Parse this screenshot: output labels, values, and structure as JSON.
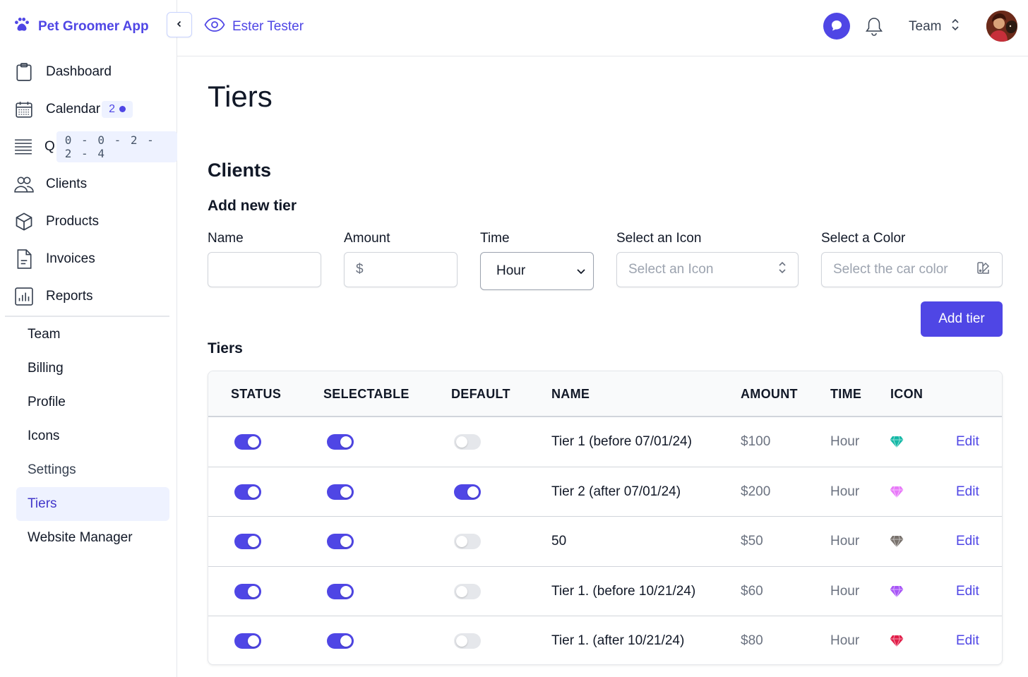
{
  "app": {
    "name": "Pet Groomer App",
    "brand_color": "#4f46e5"
  },
  "sidebar": {
    "collapse_icon": "chevron-left-icon",
    "items": [
      {
        "label": "Dashboard",
        "icon": "clipboard-icon"
      },
      {
        "label": "Calendar",
        "icon": "calendar-icon",
        "badge": "2"
      },
      {
        "label": "Q",
        "icon": "queue-icon",
        "badge": "0 - 0 - 2 - 2 - 4"
      },
      {
        "label": "Clients",
        "icon": "users-icon"
      },
      {
        "label": "Products",
        "icon": "cube-icon"
      },
      {
        "label": "Invoices",
        "icon": "document-icon"
      },
      {
        "label": "Reports",
        "icon": "chart-icon"
      }
    ],
    "subitems": [
      {
        "label": "Team"
      },
      {
        "label": "Billing"
      },
      {
        "label": "Profile"
      },
      {
        "label": "Icons"
      },
      {
        "label": "Settings"
      },
      {
        "label": "Tiers",
        "active": true
      },
      {
        "label": "Website Manager"
      }
    ]
  },
  "header": {
    "impersonating": "Ester Tester",
    "team_label": "Team"
  },
  "page": {
    "title": "Tiers",
    "section": "Clients",
    "form_title": "Add new tier",
    "fields": {
      "name_label": "Name",
      "amount_label": "Amount",
      "amount_prefix": "$",
      "time_label": "Time",
      "time_value": "Hour",
      "icon_label": "Select an Icon",
      "icon_placeholder": "Select an Icon",
      "color_label": "Select a Color",
      "color_placeholder": "Select the car color"
    },
    "add_button": "Add tier",
    "tiers_label": "Tiers"
  },
  "table": {
    "columns": [
      "STATUS",
      "SELECTABLE",
      "DEFAULT",
      "NAME",
      "AMOUNT",
      "TIME",
      "ICON"
    ],
    "rows": [
      {
        "status": true,
        "selectable": true,
        "default": false,
        "name": "Tier 1 (before 07/01/24)",
        "amount": "$100",
        "time": "Hour",
        "icon": "gem-icon",
        "icon_color": "#14b8a6",
        "action": "Edit"
      },
      {
        "status": true,
        "selectable": true,
        "default": true,
        "name": "Tier 2 (after 07/01/24)",
        "amount": "$200",
        "time": "Hour",
        "icon": "gem-icon",
        "icon_color": "#e879f9",
        "action": "Edit"
      },
      {
        "status": true,
        "selectable": true,
        "default": false,
        "name": "50",
        "amount": "$50",
        "time": "Hour",
        "icon": "gem-icon",
        "icon_color": "#78716c",
        "action": "Edit"
      },
      {
        "status": true,
        "selectable": true,
        "default": false,
        "name": "Tier 1. (before 10/21/24)",
        "amount": "$60",
        "time": "Hour",
        "icon": "gem-icon",
        "icon_color": "#a855f7",
        "action": "Edit"
      },
      {
        "status": true,
        "selectable": true,
        "default": false,
        "name": "Tier 1. (after 10/21/24)",
        "amount": "$80",
        "time": "Hour",
        "icon": "gem-icon",
        "icon_color": "#e11d48",
        "action": "Edit"
      }
    ]
  }
}
